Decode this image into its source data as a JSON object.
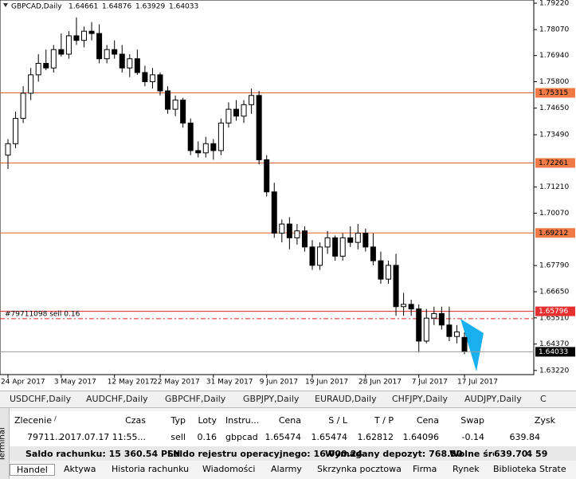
{
  "chart_data": {
    "type": "candlestick",
    "title": "GBPCAD,Daily",
    "ohlc": [
      [
        1.726,
        1.733,
        1.72,
        1.731
      ],
      [
        1.731,
        1.745,
        1.729,
        1.742
      ],
      [
        1.742,
        1.756,
        1.74,
        1.753
      ],
      [
        1.753,
        1.764,
        1.75,
        1.761
      ],
      [
        1.761,
        1.77,
        1.758,
        1.766
      ],
      [
        1.766,
        1.772,
        1.763,
        1.764
      ],
      [
        1.764,
        1.774,
        1.762,
        1.772
      ],
      [
        1.772,
        1.779,
        1.769,
        1.77
      ],
      [
        1.77,
        1.78,
        1.768,
        1.778
      ],
      [
        1.778,
        1.786,
        1.774,
        1.776
      ],
      [
        1.776,
        1.782,
        1.773,
        1.78
      ],
      [
        1.78,
        1.784,
        1.776,
        1.779
      ],
      [
        1.779,
        1.783,
        1.766,
        1.768
      ],
      [
        1.768,
        1.774,
        1.766,
        1.772
      ],
      [
        1.772,
        1.776,
        1.768,
        1.77
      ],
      [
        1.77,
        1.774,
        1.762,
        1.764
      ],
      [
        1.764,
        1.77,
        1.76,
        1.768
      ],
      [
        1.768,
        1.772,
        1.761,
        1.762
      ],
      [
        1.762,
        1.765,
        1.756,
        1.758
      ],
      [
        1.758,
        1.764,
        1.755,
        1.761
      ],
      [
        1.761,
        1.762,
        1.752,
        1.754
      ],
      [
        1.754,
        1.756,
        1.744,
        1.746
      ],
      [
        1.746,
        1.752,
        1.743,
        1.75
      ],
      [
        1.75,
        1.751,
        1.738,
        1.74
      ],
      [
        1.74,
        1.742,
        1.726,
        1.728
      ],
      [
        1.728,
        1.732,
        1.725,
        1.727
      ],
      [
        1.727,
        1.734,
        1.725,
        1.731
      ],
      [
        1.731,
        1.733,
        1.724,
        1.728
      ],
      [
        1.728,
        1.742,
        1.726,
        1.74
      ],
      [
        1.74,
        1.749,
        1.738,
        1.746
      ],
      [
        1.746,
        1.75,
        1.741,
        1.743
      ],
      [
        1.743,
        1.75,
        1.74,
        1.748
      ],
      [
        1.748,
        1.755,
        1.744,
        1.752
      ],
      [
        1.752,
        1.754,
        1.722,
        1.724
      ],
      [
        1.724,
        1.726,
        1.708,
        1.71
      ],
      [
        1.71,
        1.714,
        1.69,
        1.692
      ],
      [
        1.692,
        1.698,
        1.688,
        1.696
      ],
      [
        1.696,
        1.699,
        1.685,
        1.69
      ],
      [
        1.69,
        1.696,
        1.687,
        1.693
      ],
      [
        1.693,
        1.695,
        1.684,
        1.686
      ],
      [
        1.686,
        1.689,
        1.676,
        1.678
      ],
      [
        1.678,
        1.688,
        1.676,
        1.686
      ],
      [
        1.686,
        1.693,
        1.683,
        1.69
      ],
      [
        1.69,
        1.691,
        1.68,
        1.682
      ],
      [
        1.682,
        1.692,
        1.68,
        1.69
      ],
      [
        1.69,
        1.695,
        1.686,
        1.688
      ],
      [
        1.688,
        1.696,
        1.685,
        1.692
      ],
      [
        1.692,
        1.694,
        1.684,
        1.686
      ],
      [
        1.686,
        1.692,
        1.678,
        1.68
      ],
      [
        1.68,
        1.684,
        1.67,
        1.672
      ],
      [
        1.672,
        1.68,
        1.67,
        1.678
      ],
      [
        1.678,
        1.683,
        1.656,
        1.66
      ],
      [
        1.66,
        1.666,
        1.656,
        1.661
      ],
      [
        1.661,
        1.663,
        1.656,
        1.659
      ],
      [
        1.659,
        1.661,
        1.64,
        1.645
      ],
      [
        1.645,
        1.659,
        1.644,
        1.655
      ],
      [
        1.655,
        1.66,
        1.652,
        1.657
      ],
      [
        1.657,
        1.66,
        1.65,
        1.652
      ],
      [
        1.652,
        1.66,
        1.645,
        1.647
      ],
      [
        1.647,
        1.652,
        1.644,
        1.649
      ],
      [
        1.64661,
        1.64876,
        1.63929,
        1.64033
      ]
    ],
    "ylim": [
      1.6304,
      1.7936
    ],
    "yticks": [
      {
        "value": 1.7922,
        "label": "1.79220"
      },
      {
        "value": 1.7807,
        "label": "1.78070"
      },
      {
        "value": 1.7694,
        "label": "1.76940"
      },
      {
        "value": 1.758,
        "label": "1.75800"
      },
      {
        "value": 1.7465,
        "label": "1.74650"
      },
      {
        "value": 1.7349,
        "label": "1.73490"
      },
      {
        "value": 1.7121,
        "label": "1.71210"
      },
      {
        "value": 1.7007,
        "label": "1.70070"
      },
      {
        "value": 1.6779,
        "label": "1.67790"
      },
      {
        "value": 1.6665,
        "label": "1.66650"
      },
      {
        "value": 1.6551,
        "label": "1.65510"
      },
      {
        "value": 1.6437,
        "label": "1.64370"
      },
      {
        "value": 1.6322,
        "label": "1.63220"
      }
    ],
    "xticks": [
      {
        "value": 0,
        "label": "24 Apr 2017"
      },
      {
        "value": 7,
        "label": "3 May 2017"
      },
      {
        "value": 14,
        "label": "12 May 2017"
      },
      {
        "value": 20,
        "label": "22 May 2017"
      },
      {
        "value": 27,
        "label": "31 May 2017"
      },
      {
        "value": 34,
        "label": "9 Jun 2017"
      },
      {
        "value": 40,
        "label": "19 Jun 2017"
      },
      {
        "value": 47,
        "label": "28 Jun 2017"
      },
      {
        "value": 54,
        "label": "7 Jul 2017"
      },
      {
        "value": 60,
        "label": "17 Jul 2017"
      }
    ],
    "levels": [
      1.75315,
      1.72261,
      1.69212
    ],
    "order_level": 1.65796,
    "order_line": {
      "value": 1.65474,
      "label": "#79711098 sell 0.16"
    }
  },
  "symbol_tabs": [
    "USDCHF,Daily",
    "AUDCHF,Daily",
    "GBPCHF,Daily",
    "GBPJPY,Daily",
    "EURAUD,Daily",
    "CHFJPY,Daily",
    "AUDJPY,Daily",
    "C"
  ],
  "table": {
    "header": [
      "Zlecenie",
      "/",
      "Czas",
      "Typ",
      "Loty",
      "Instru...",
      "Cena",
      "S / L",
      "T / P",
      "Cena",
      "Swap",
      "Zysk"
    ],
    "rows": [
      [
        "79711...",
        "2017.07.17 11:55...",
        "sell",
        "0.16",
        "gbpcad",
        "1.65474",
        "1.65474",
        "1.62812",
        "1.64096",
        "-0.14",
        "639.84"
      ]
    ]
  },
  "balance": [
    "Saldo rachunku: 15 360.54 PLN",
    "Saldo rejestru operacyjnego: 16 000.24",
    "Wymagany depozyt: 768.50",
    "Wolne środki: 14 59",
    "639.70"
  ],
  "side_label": "Terminal",
  "tabs": [
    "Handel",
    "Aktywa",
    "Historia rachunku",
    "Wiadomości",
    "Alarmy",
    "Skrzynka pocztowa",
    "Firma",
    "Rynek",
    "Biblioteka",
    "Strate"
  ]
}
